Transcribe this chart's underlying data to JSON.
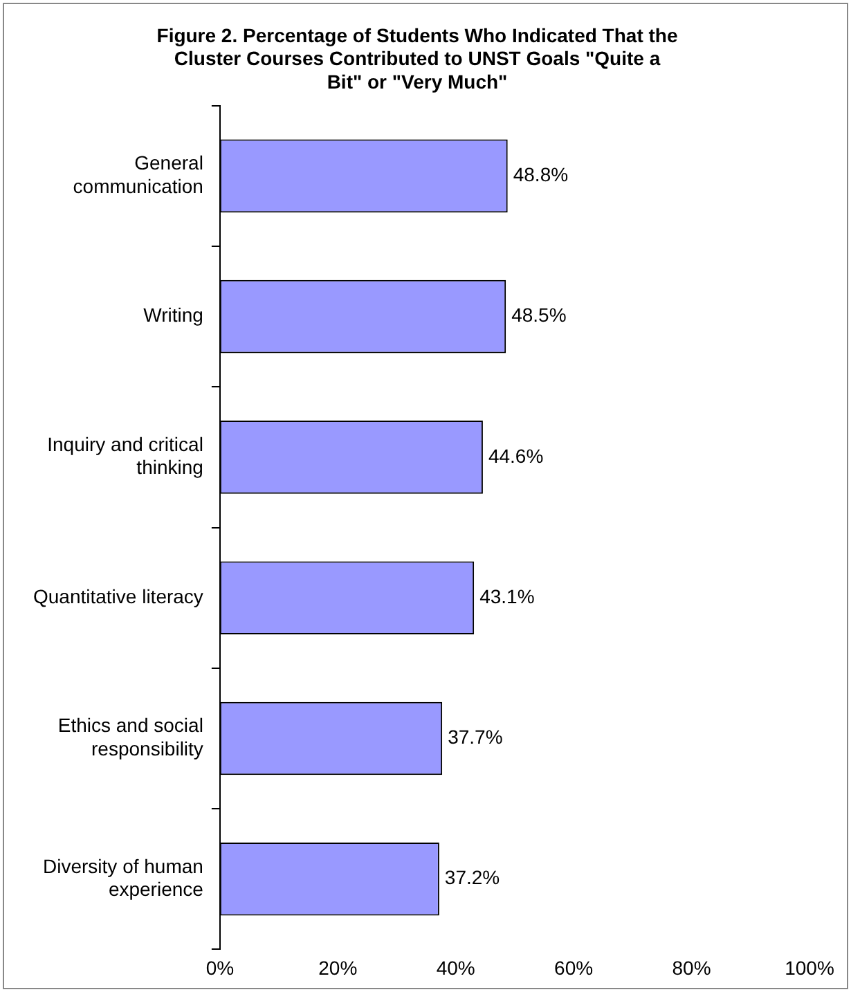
{
  "chart_data": {
    "type": "bar",
    "orientation": "horizontal",
    "title": "Figure 2. Percentage of Students Who Indicated That the Cluster Courses Contributed to UNST Goals \"Quite a Bit\" or \"Very Much\"",
    "categories": [
      "General communication",
      "Writing",
      "Inquiry and critical thinking",
      "Quantitative literacy",
      "Ethics and social responsibility",
      "Diversity of human experience"
    ],
    "values": [
      48.8,
      48.5,
      44.6,
      43.1,
      37.7,
      37.2
    ],
    "value_labels": [
      "48.8%",
      "48.5%",
      "44.6%",
      "43.1%",
      "37.7%",
      "37.2%"
    ],
    "color": "#9999ff",
    "xlim": [
      0,
      100
    ],
    "xticks": [
      {
        "value": 0,
        "label": "0%"
      },
      {
        "value": 20,
        "label": "20%"
      },
      {
        "value": 40,
        "label": "40%"
      },
      {
        "value": 60,
        "label": "60%"
      },
      {
        "value": 80,
        "label": "80%"
      },
      {
        "value": 100,
        "label": "100%"
      }
    ],
    "grid": false,
    "legend": false
  }
}
